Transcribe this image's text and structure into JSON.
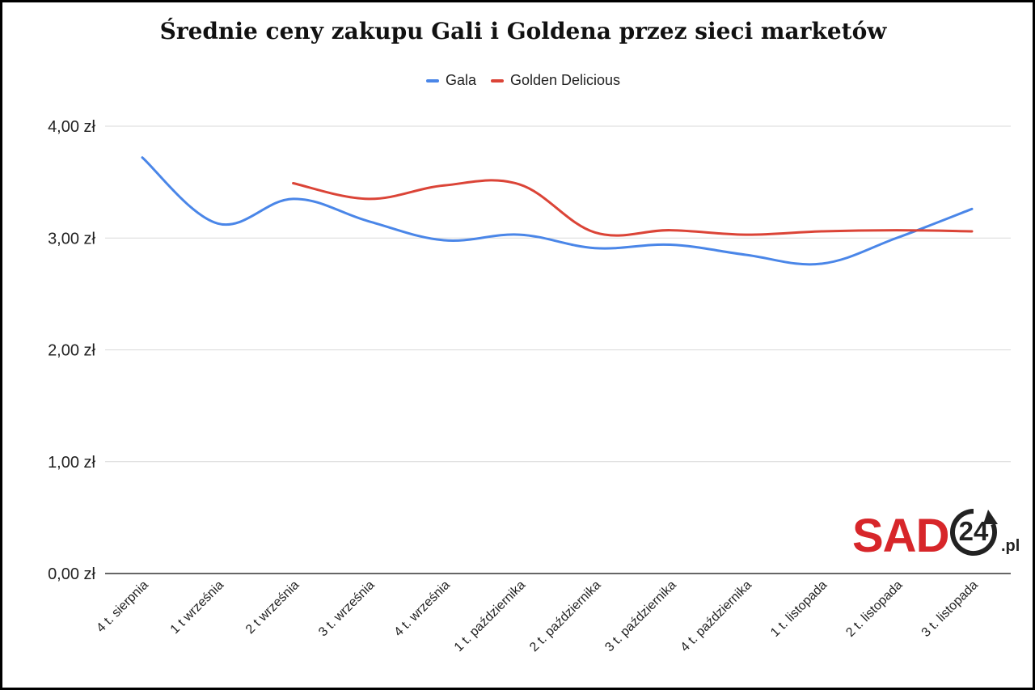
{
  "chart_data": {
    "type": "line",
    "title": "Średnie ceny zakupu Gali i Goldena przez sieci marketów",
    "categories": [
      "4 t. sierpnia",
      "1 t września",
      "2 t września",
      "3 t. września",
      "4 t. września",
      "1 t. października",
      "2 t. października",
      "3 t. października",
      "4 t. października",
      "1 t. listopada",
      "2 t. listopada",
      "3 t. listopada"
    ],
    "series": [
      {
        "name": "Gala",
        "color": "#4a86e8",
        "values": [
          3.72,
          3.13,
          3.35,
          3.15,
          2.98,
          3.03,
          2.91,
          2.94,
          2.85,
          2.77,
          3.0,
          3.26
        ]
      },
      {
        "name": "Golden Delicious",
        "color": "#db4437",
        "values": [
          null,
          null,
          3.49,
          3.35,
          3.47,
          3.48,
          3.05,
          3.07,
          3.03,
          3.06,
          3.07,
          3.06
        ]
      }
    ],
    "ylim": [
      0,
      4
    ],
    "yticks": [
      {
        "value": 0,
        "label": "0,00 zł"
      },
      {
        "value": 1,
        "label": "1,00 zł"
      },
      {
        "value": 2,
        "label": "2,00 zł"
      },
      {
        "value": 3,
        "label": "3,00 zł"
      },
      {
        "value": 4,
        "label": "4,00 zł"
      }
    ],
    "grid": true,
    "legend_position": "top-center"
  },
  "logo": {
    "brand": "SAD",
    "number": "24",
    "suffix": ".pl"
  }
}
